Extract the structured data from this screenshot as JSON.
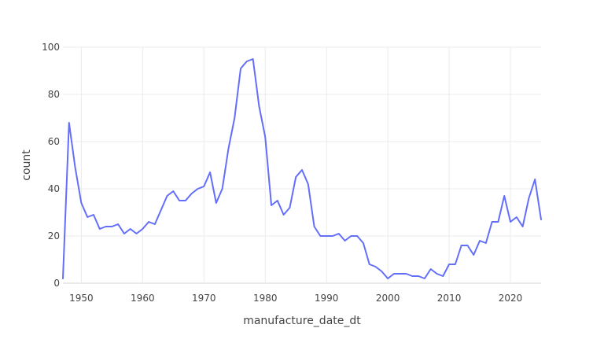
{
  "chart_data": {
    "type": "line",
    "xlabel": "manufacture_date_dt",
    "ylabel": "count",
    "xlim": [
      1947,
      2025
    ],
    "ylim": [
      0,
      100
    ],
    "x_ticks": [
      1950,
      1960,
      1970,
      1980,
      1990,
      2000,
      2010,
      2020
    ],
    "y_ticks": [
      0,
      20,
      40,
      60,
      80,
      100
    ],
    "grid": true,
    "legend": "none",
    "line_color": "#636efa",
    "series": [
      {
        "x": [
          1947,
          1948,
          1949,
          1950,
          1951,
          1952,
          1953,
          1954,
          1955,
          1956,
          1957,
          1958,
          1959,
          1960,
          1961,
          1962,
          1963,
          1964,
          1965,
          1966,
          1967,
          1968,
          1969,
          1970,
          1971,
          1972,
          1973,
          1974,
          1975,
          1976,
          1977,
          1978,
          1979,
          1980,
          1981,
          1982,
          1983,
          1984,
          1985,
          1986,
          1987,
          1988,
          1989,
          1990,
          1991,
          1992,
          1993,
          1994,
          1995,
          1996,
          1997,
          1998,
          1999,
          2000,
          2001,
          2002,
          2003,
          2004,
          2005,
          2006,
          2007,
          2008,
          2009,
          2010,
          2011,
          2012,
          2013,
          2014,
          2015,
          2016,
          2017,
          2018,
          2019,
          2020,
          2021,
          2022,
          2023,
          2024,
          2025
        ],
        "values": [
          2,
          68,
          49,
          34,
          28,
          29,
          23,
          24,
          24,
          25,
          21,
          23,
          21,
          23,
          26,
          25,
          31,
          37,
          39,
          35,
          35,
          38,
          40,
          41,
          47,
          34,
          40,
          57,
          70,
          91,
          94,
          95,
          75,
          62,
          33,
          35,
          29,
          32,
          45,
          48,
          42,
          24,
          20,
          20,
          20,
          21,
          18,
          20,
          20,
          17,
          8,
          7,
          5,
          2,
          4,
          4,
          4,
          3,
          3,
          2,
          6,
          4,
          3,
          8,
          8,
          16,
          16,
          12,
          18,
          17,
          26,
          26,
          37,
          26,
          28,
          24,
          36,
          44,
          27
        ]
      }
    ]
  }
}
